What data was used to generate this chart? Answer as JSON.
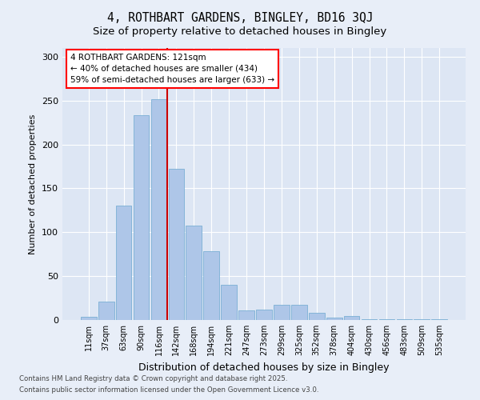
{
  "title1": "4, ROTHBART GARDENS, BINGLEY, BD16 3QJ",
  "title2": "Size of property relative to detached houses in Bingley",
  "xlabel": "Distribution of detached houses by size in Bingley",
  "ylabel": "Number of detached properties",
  "bin_labels": [
    "11sqm",
    "37sqm",
    "63sqm",
    "90sqm",
    "116sqm",
    "142sqm",
    "168sqm",
    "194sqm",
    "221sqm",
    "247sqm",
    "273sqm",
    "299sqm",
    "325sqm",
    "352sqm",
    "378sqm",
    "404sqm",
    "430sqm",
    "456sqm",
    "483sqm",
    "509sqm",
    "535sqm"
  ],
  "bar_heights": [
    4,
    21,
    130,
    233,
    252,
    172,
    108,
    78,
    40,
    11,
    12,
    17,
    17,
    8,
    3,
    5,
    1,
    1,
    1,
    1,
    1
  ],
  "bar_color": "#aec6e8",
  "bar_edge_color": "#7aafd4",
  "annotation_line1": "4 ROTHBART GARDENS: 121sqm",
  "annotation_line2": "← 40% of detached houses are smaller (434)",
  "annotation_line3": "59% of semi-detached houses are larger (633) →",
  "vline_color": "#cc0000",
  "bg_color": "#e8eef8",
  "plot_bg_color": "#dde6f4",
  "ylim": [
    0,
    310
  ],
  "yticks": [
    0,
    50,
    100,
    150,
    200,
    250,
    300
  ],
  "footer1": "Contains HM Land Registry data © Crown copyright and database right 2025.",
  "footer2": "Contains public sector information licensed under the Open Government Licence v3.0."
}
